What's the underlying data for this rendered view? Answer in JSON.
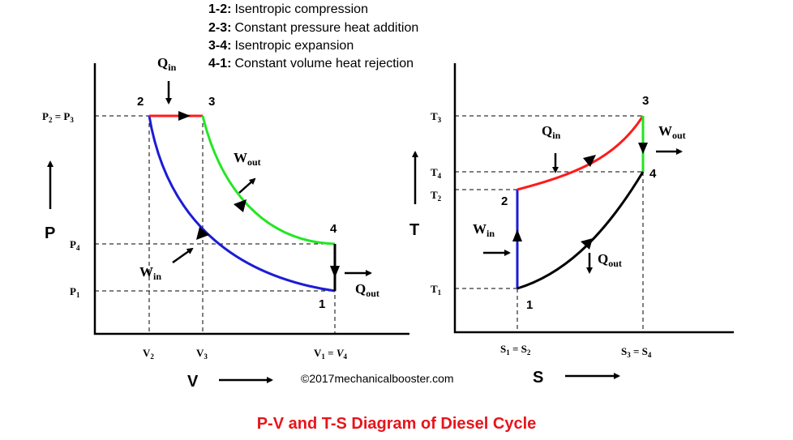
{
  "legend": [
    {
      "key": "1-2:",
      "text": "Isentropic compression"
    },
    {
      "key": "2-3:",
      "text": "Constant pressure heat addition"
    },
    {
      "key": "3-4:",
      "text": "Isentropic expansion"
    },
    {
      "key": "4-1:",
      "text": "Constant volume heat rejection"
    }
  ],
  "pv": {
    "axis_p": "P",
    "axis_v": "V",
    "p23_label": "P",
    "p23_sub_a": "2",
    "p23_eq": " = P",
    "p23_sub_b": "3",
    "p4": "P",
    "p4_sub": "4",
    "p1": "P",
    "p1_sub": "1",
    "v2": "V",
    "v2_sub": "2",
    "v3": "V",
    "v3_sub": "3",
    "v14_a": "V",
    "v14_sub_a": "1",
    "v14_eq": " = ",
    "v14_b": "V",
    "v14_sub_b": "4",
    "point1": "1",
    "point2": "2",
    "point3": "3",
    "point4": "4",
    "qin": "Q",
    "qin_sub": "in",
    "qout": "Q",
    "qout_sub": "out",
    "win": "W",
    "win_sub": "in",
    "wout": "W",
    "wout_sub": "out"
  },
  "ts": {
    "axis_t": "T",
    "axis_s": "S",
    "t3": "T",
    "t3_sub": "3",
    "t4": "T",
    "t4_sub": "4",
    "t2": "T",
    "t2_sub": "2",
    "t1": "T",
    "t1_sub": "1",
    "s12_a": "S",
    "s12_sub_a": "1",
    "s12_eq": " = S",
    "s12_sub_b": "2",
    "s34_a": "S",
    "s34_sub_a": "3",
    "s34_eq": " = S",
    "s34_sub_b": "4",
    "point1": "1",
    "point2": "2",
    "point3": "3",
    "point4": "4",
    "qin": "Q",
    "qin_sub": "in",
    "qout": "Q",
    "qout_sub": "out",
    "win": "W",
    "win_sub": "in",
    "wout": "W",
    "wout_sub": "out"
  },
  "credit": "©2017mechanicalbooster.com",
  "title": "P-V and T-S Diagram of Diesel Cycle",
  "colors": {
    "compression": "#1c1cd6",
    "heat_addition": "#ff1a1a",
    "expansion": "#22e622",
    "heat_rejection": "#000000",
    "title": "#e8141b"
  }
}
